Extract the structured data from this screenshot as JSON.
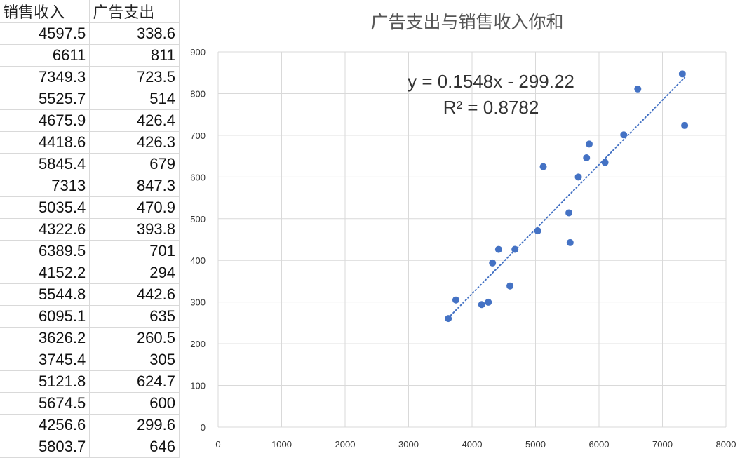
{
  "table": {
    "headers": [
      "销售收入",
      "广告支出"
    ],
    "rows": [
      [
        "4597.5",
        "338.6"
      ],
      [
        "6611",
        "811"
      ],
      [
        "7349.3",
        "723.5"
      ],
      [
        "5525.7",
        "514"
      ],
      [
        "4675.9",
        "426.4"
      ],
      [
        "4418.6",
        "426.3"
      ],
      [
        "5845.4",
        "679"
      ],
      [
        "7313",
        "847.3"
      ],
      [
        "5035.4",
        "470.9"
      ],
      [
        "4322.6",
        "393.8"
      ],
      [
        "6389.5",
        "701"
      ],
      [
        "4152.2",
        "294"
      ],
      [
        "5544.8",
        "442.6"
      ],
      [
        "6095.1",
        "635"
      ],
      [
        "3626.2",
        "260.5"
      ],
      [
        "3745.4",
        "305"
      ],
      [
        "5121.8",
        "624.7"
      ],
      [
        "5674.5",
        "600"
      ],
      [
        "4256.6",
        "299.6"
      ],
      [
        "5803.7",
        "646"
      ]
    ]
  },
  "chart_data": {
    "type": "scatter",
    "title": "广告支出与销售收入你和",
    "xlim": [
      0,
      8000
    ],
    "ylim": [
      0,
      900
    ],
    "x_ticks": [
      0,
      1000,
      2000,
      3000,
      4000,
      5000,
      6000,
      7000,
      8000
    ],
    "y_ticks": [
      0,
      100,
      200,
      300,
      400,
      500,
      600,
      700,
      800,
      900
    ],
    "grid": true,
    "legend": "none",
    "point_color": "#4472c4",
    "trendline": {
      "slope": 0.1548,
      "intercept": -299.22,
      "x_range": [
        3626.2,
        7349.3
      ],
      "style": "dotted",
      "equation": "y = 0.1548x - 299.22",
      "r_squared": "R² = 0.8782"
    },
    "points": [
      {
        "x": 4597.5,
        "y": 338.6
      },
      {
        "x": 6611,
        "y": 811
      },
      {
        "x": 7349.3,
        "y": 723.5
      },
      {
        "x": 5525.7,
        "y": 514
      },
      {
        "x": 4675.9,
        "y": 426.4
      },
      {
        "x": 4418.6,
        "y": 426.3
      },
      {
        "x": 5845.4,
        "y": 679
      },
      {
        "x": 7313,
        "y": 847.3
      },
      {
        "x": 5035.4,
        "y": 470.9
      },
      {
        "x": 4322.6,
        "y": 393.8
      },
      {
        "x": 6389.5,
        "y": 701
      },
      {
        "x": 4152.2,
        "y": 294
      },
      {
        "x": 5544.8,
        "y": 442.6
      },
      {
        "x": 6095.1,
        "y": 635
      },
      {
        "x": 3626.2,
        "y": 260.5
      },
      {
        "x": 3745.4,
        "y": 305
      },
      {
        "x": 5121.8,
        "y": 624.7
      },
      {
        "x": 5674.5,
        "y": 600
      },
      {
        "x": 4256.6,
        "y": 299.6
      },
      {
        "x": 5803.7,
        "y": 646
      }
    ]
  }
}
